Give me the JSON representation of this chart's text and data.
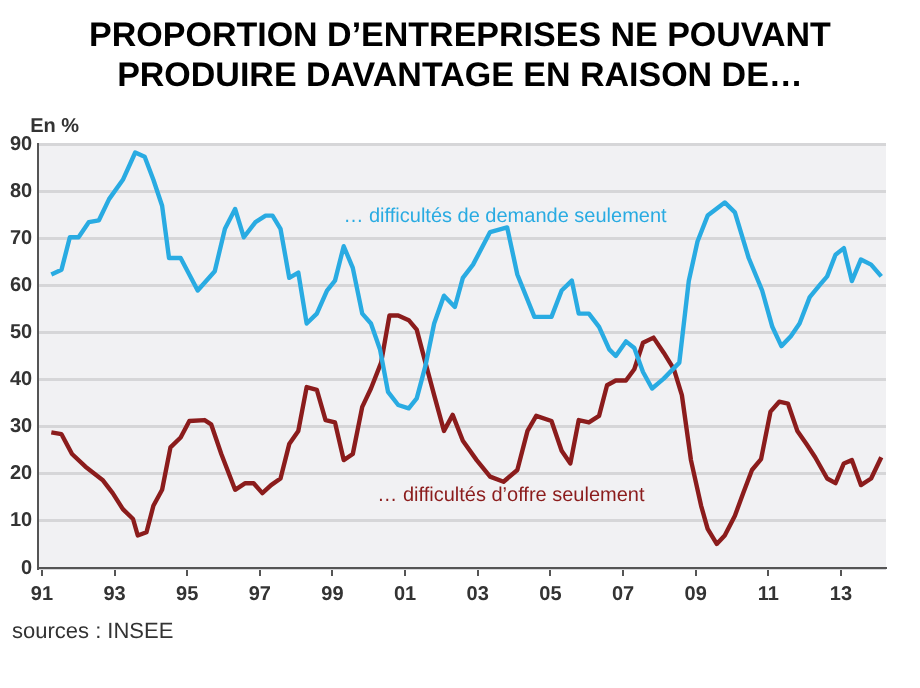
{
  "chart_data": {
    "type": "line",
    "title": "PROPORTION D’ENTREPRISES NE POUVANT PRODUIRE DAVANTAGE EN RAISON DE…",
    "ylabel": "En %",
    "annotations": [
      "sources : INSEE"
    ],
    "xlim": [
      1990.9,
      2014.24
    ],
    "xticks": [
      {
        "value": 1991,
        "label": "91"
      },
      {
        "value": 1993,
        "label": "93"
      },
      {
        "value": 1995,
        "label": "95"
      },
      {
        "value": 1997,
        "label": "97"
      },
      {
        "value": 1999,
        "label": "99"
      },
      {
        "value": 2001,
        "label": "01"
      },
      {
        "value": 2003,
        "label": "03"
      },
      {
        "value": 2005,
        "label": "05"
      },
      {
        "value": 2007,
        "label": "07"
      },
      {
        "value": 2009,
        "label": "09"
      },
      {
        "value": 2011,
        "label": "11"
      },
      {
        "value": 2013,
        "label": "13"
      }
    ],
    "ylim": [
      0,
      90
    ],
    "yticks": [
      0,
      10,
      20,
      30,
      40,
      50,
      60,
      70,
      80,
      90
    ],
    "grid": "y",
    "legend": false,
    "marker": "none",
    "line_style": "solid",
    "series": [
      {
        "name": "… difficultés de demande seulement",
        "color": "#29abe2",
        "x": [
          1991.26,
          1991.54,
          1991.77,
          1992.01,
          1992.29,
          1992.57,
          1992.85,
          1993.23,
          1993.57,
          1993.83,
          1994.07,
          1994.31,
          1994.5,
          1994.82,
          1995.29,
          1995.76,
          1996.04,
          1996.32,
          1996.56,
          1996.88,
          1997.16,
          1997.35,
          1997.57,
          1997.81,
          1998.06,
          1998.29,
          1998.57,
          1998.85,
          1999.07,
          1999.31,
          1999.56,
          1999.82,
          2000.06,
          2000.31,
          2000.53,
          2000.81,
          2001.1,
          2001.32,
          2001.56,
          2001.8,
          2002.07,
          2002.37,
          2002.59,
          2002.87,
          2003.34,
          2003.81,
          2004.09,
          2004.56,
          2005.03,
          2005.31,
          2005.59,
          2005.78,
          2006.06,
          2006.34,
          2006.62,
          2006.8,
          2007.08,
          2007.31,
          2007.55,
          2007.8,
          2008.12,
          2008.55,
          2008.81,
          2009.05,
          2009.33,
          2009.8,
          2010.08,
          2010.46,
          2010.83,
          2011.11,
          2011.36,
          2011.62,
          2011.86,
          2012.14,
          2012.43,
          2012.62,
          2012.85,
          2013.08,
          2013.3,
          2013.55,
          2013.83,
          2014.11
        ],
        "values": [
          62.3,
          63.3,
          70.2,
          70.2,
          73.4,
          73.8,
          78.3,
          82.4,
          88.2,
          87.3,
          82.4,
          76.9,
          65.8,
          65.8,
          58.9,
          63,
          72,
          76.2,
          70.2,
          73.4,
          74.8,
          74.8,
          72,
          61.6,
          62.7,
          51.9,
          54,
          58.9,
          61,
          68.3,
          63.7,
          54,
          51.9,
          46.4,
          37.4,
          34.6,
          33.9,
          36,
          42.9,
          51.9,
          57.8,
          55.4,
          61.6,
          64.4,
          71.3,
          72.3,
          62.3,
          53.3,
          53.3,
          58.9,
          61,
          54,
          54,
          51.2,
          46.4,
          45,
          48.1,
          46.7,
          41.6,
          38.1,
          40.2,
          43.6,
          60.9,
          69.3,
          74.8,
          77.6,
          75.5,
          65.8,
          58.9,
          51.2,
          47.1,
          49.2,
          51.9,
          57.5,
          60.2,
          61.9,
          66.5,
          67.9,
          60.9,
          65.5,
          64.4,
          61.9
        ]
      },
      {
        "name": "… difficultés d’offre seulement",
        "color": "#8b1c1c",
        "x": [
          1991.26,
          1991.54,
          1991.83,
          1992.2,
          1992.67,
          1992.95,
          1993.23,
          1993.51,
          1993.64,
          1993.88,
          1994.07,
          1994.31,
          1994.54,
          1994.82,
          1995.06,
          1995.48,
          1995.66,
          1995.94,
          1996.32,
          1996.6,
          1996.83,
          1997.07,
          1997.31,
          1997.57,
          1997.81,
          1998.06,
          1998.29,
          1998.57,
          1998.81,
          1999.07,
          1999.31,
          1999.56,
          1999.82,
          2000.06,
          2000.34,
          2000.57,
          2000.81,
          2001.1,
          2001.32,
          2001.56,
          2001.8,
          2002.07,
          2002.31,
          2002.59,
          2002.97,
          2003.34,
          2003.71,
          2004.09,
          2004.37,
          2004.61,
          2005.03,
          2005.31,
          2005.55,
          2005.78,
          2006.06,
          2006.34,
          2006.56,
          2006.8,
          2007.08,
          2007.31,
          2007.55,
          2007.84,
          2008.12,
          2008.4,
          2008.62,
          2008.87,
          2009.15,
          2009.33,
          2009.58,
          2009.8,
          2010.08,
          2010.31,
          2010.55,
          2010.8,
          2011.06,
          2011.3,
          2011.54,
          2011.8,
          2012.05,
          2012.29,
          2012.62,
          2012.85,
          2013.08,
          2013.3,
          2013.55,
          2013.83,
          2014.11
        ],
        "values": [
          28.8,
          28.4,
          24.2,
          21.5,
          18.7,
          15.9,
          12.5,
          10.4,
          6.9,
          7.6,
          13.2,
          16.6,
          25.6,
          27.7,
          31.2,
          31.4,
          30.5,
          24.2,
          16.6,
          18,
          18,
          15.9,
          17.6,
          19,
          26.3,
          29.1,
          38.4,
          37.8,
          31.4,
          30.9,
          22.9,
          24.2,
          34.2,
          38.1,
          43.6,
          53.6,
          53.6,
          52.6,
          50.6,
          43.6,
          36.7,
          29.1,
          32.5,
          27,
          22.9,
          19.4,
          18.3,
          20.8,
          29.1,
          32.3,
          31.2,
          24.9,
          22.2,
          31.4,
          30.9,
          32.3,
          38.8,
          39.8,
          39.8,
          42.2,
          47.8,
          48.9,
          45.7,
          42.2,
          36.7,
          22.9,
          13.2,
          8.3,
          5.1,
          6.9,
          11.1,
          15.9,
          20.8,
          23.1,
          33.2,
          35.3,
          34.9,
          29.1,
          26.3,
          23.5,
          19,
          18,
          22.2,
          22.9,
          17.6,
          19,
          23.5
        ]
      }
    ]
  }
}
